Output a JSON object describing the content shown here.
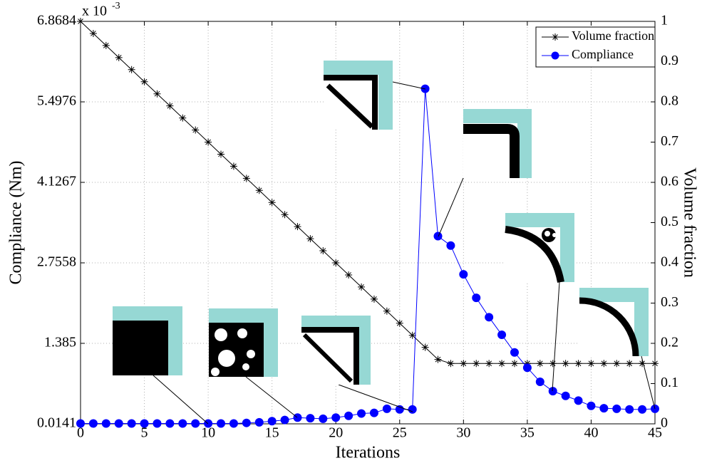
{
  "chart_data": {
    "type": "line",
    "x_label": "Iterations",
    "y_label": "Compliance (Nm)",
    "y2_label": "Volume fraction",
    "y_multiplier": "x 10",
    "y_multiplier_exponent": "-3",
    "x": [
      0,
      1,
      2,
      3,
      4,
      5,
      6,
      7,
      8,
      9,
      10,
      11,
      12,
      13,
      14,
      15,
      16,
      17,
      18,
      19,
      20,
      21,
      22,
      23,
      24,
      25,
      26,
      27,
      28,
      29,
      30,
      31,
      32,
      33,
      34,
      35,
      36,
      37,
      38,
      39,
      40,
      41,
      42,
      43,
      44,
      45
    ],
    "series": [
      {
        "name": "Volume fraction",
        "color": "#000000",
        "marker": "star",
        "axis": "y2",
        "values": [
          1,
          0.97,
          0.94,
          0.91,
          0.88,
          0.85,
          0.82,
          0.79,
          0.76,
          0.73,
          0.7,
          0.67,
          0.64,
          0.61,
          0.58,
          0.55,
          0.52,
          0.49,
          0.46,
          0.43,
          0.4,
          0.37,
          0.34,
          0.31,
          0.28,
          0.25,
          0.22,
          0.19,
          0.16,
          0.15,
          0.15,
          0.15,
          0.15,
          0.15,
          0.15,
          0.15,
          0.15,
          0.15,
          0.15,
          0.15,
          0.15,
          0.15,
          0.15,
          0.15,
          0.15,
          0.15
        ]
      },
      {
        "name": "Compliance",
        "color": "#0000ff",
        "marker": "circle",
        "values": [
          0.02,
          0.02,
          0.02,
          0.02,
          0.02,
          0.02,
          0.02,
          0.02,
          0.02,
          0.02,
          0.02,
          0.02,
          0.02,
          0.03,
          0.04,
          0.06,
          0.08,
          0.12,
          0.11,
          0.1,
          0.12,
          0.15,
          0.19,
          0.2,
          0.27,
          0.26,
          0.26,
          5.72,
          3.21,
          3.05,
          2.56,
          2.16,
          1.83,
          1.53,
          1.23,
          0.97,
          0.73,
          0.57,
          0.49,
          0.41,
          0.32,
          0.28,
          0.27,
          0.26,
          0.26,
          0.27
        ]
      }
    ],
    "xlim": [
      0,
      45
    ],
    "xticks": [
      0,
      5,
      10,
      15,
      20,
      25,
      30,
      35,
      40,
      45
    ],
    "ylim": [
      0.0141,
      6.8684
    ],
    "yticks": [
      0.0141,
      1.385,
      2.7558,
      4.1267,
      5.4976,
      6.8684
    ],
    "y2lim": [
      0,
      1
    ],
    "y2ticks": [
      0,
      0.1,
      0.2,
      0.3,
      0.4,
      0.5,
      0.6,
      0.7,
      0.8,
      0.9,
      1
    ],
    "grid": true,
    "legend": "upper right"
  }
}
